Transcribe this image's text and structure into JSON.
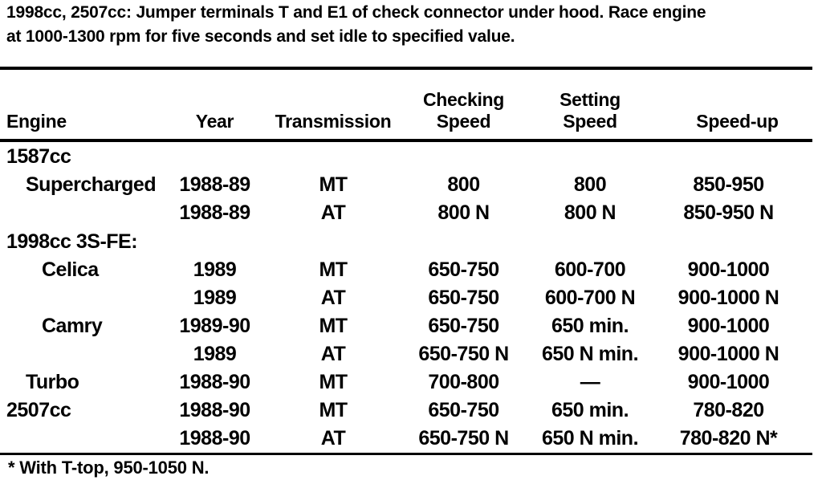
{
  "intro": {
    "line1": "1998cc, 2507cc: Jumper terminals T and E1 of check connector under hood. Race engine",
    "line2": "at 1000-1300 rpm for five seconds and set idle to specified value."
  },
  "table": {
    "columns": [
      {
        "label": "Engine"
      },
      {
        "label": "Year"
      },
      {
        "label": "Transmission"
      },
      {
        "label_line1": "Checking",
        "label_line2": "Speed"
      },
      {
        "label_line1": "Setting",
        "label_line2": "Speed"
      },
      {
        "label": "Speed-up"
      }
    ],
    "rows": [
      {
        "engine": "1587cc",
        "year": "",
        "transmission": "",
        "checking_speed": "",
        "setting_speed": "",
        "speed_up": ""
      },
      {
        "engine": "Supercharged",
        "year": "1988-89",
        "transmission": "MT",
        "checking_speed": "800",
        "setting_speed": "800",
        "speed_up": "850-950"
      },
      {
        "engine": "",
        "year": "1988-89",
        "transmission": "AT",
        "checking_speed": "800 N",
        "setting_speed": "800 N",
        "speed_up": "850-950 N"
      },
      {
        "engine": "1998cc 3S-FE:",
        "year": "",
        "transmission": "",
        "checking_speed": "",
        "setting_speed": "",
        "speed_up": ""
      },
      {
        "engine": "Celica",
        "year": "1989",
        "transmission": "MT",
        "checking_speed": "650-750",
        "setting_speed": "600-700",
        "speed_up": "900-1000"
      },
      {
        "engine": "",
        "year": "1989",
        "transmission": "AT",
        "checking_speed": "650-750",
        "setting_speed": "600-700 N",
        "speed_up": "900-1000 N"
      },
      {
        "engine": "Camry",
        "year": "1989-90",
        "transmission": "MT",
        "checking_speed": "650-750",
        "setting_speed": "650 min.",
        "speed_up": "900-1000"
      },
      {
        "engine": "",
        "year": "1989",
        "transmission": "AT",
        "checking_speed": "650-750 N",
        "setting_speed": "650 N min.",
        "speed_up": "900-1000 N"
      },
      {
        "engine": "Turbo",
        "year": "1988-90",
        "transmission": "MT",
        "checking_speed": "700-800",
        "setting_speed": "—",
        "speed_up": "900-1000"
      },
      {
        "engine": "2507cc",
        "year": "1988-90",
        "transmission": "MT",
        "checking_speed": "650-750",
        "setting_speed": "650 min.",
        "speed_up": "780-820"
      },
      {
        "engine": "",
        "year": "1988-90",
        "transmission": "AT",
        "checking_speed": "650-750 N",
        "setting_speed": "650 N min.",
        "speed_up": "780-820 N*"
      }
    ]
  },
  "footnote": "* With T-top, 950-1050 N."
}
